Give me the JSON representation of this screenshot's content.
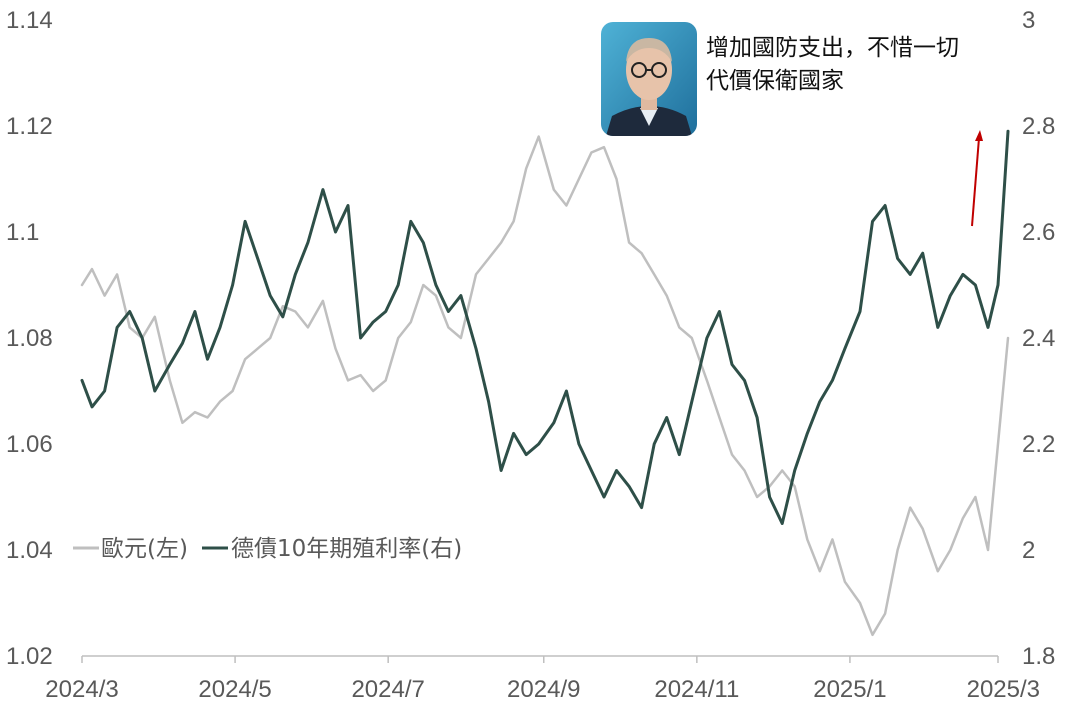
{
  "chart_data": {
    "type": "line",
    "title": "",
    "xlabel": "",
    "ylabel_left": "",
    "ylabel_right": "",
    "x_ticks": [
      "2024/3",
      "2024/5",
      "2024/7",
      "2024/9",
      "2024/11",
      "2025/1",
      "2025/3"
    ],
    "y_left": {
      "range": [
        1.02,
        1.14
      ],
      "ticks": [
        "1.02",
        "1.04",
        "1.06",
        "1.08",
        "1.1",
        "1.12",
        "1.14"
      ]
    },
    "y_right": {
      "range": [
        1.8,
        3.0
      ],
      "ticks": [
        "1.8",
        "2",
        "2.2",
        "2.4",
        "2.6",
        "2.8",
        "3"
      ]
    },
    "grid": false,
    "legend": {
      "placement": "bottom-left",
      "entries": [
        "歐元(左)",
        "德債10年期殖利率(右)"
      ]
    },
    "series": [
      {
        "name": "歐元(左)",
        "axis": "left",
        "color": "#bfbfbf",
        "x": [
          "2024-03-01",
          "2024-03-05",
          "2024-03-10",
          "2024-03-15",
          "2024-03-20",
          "2024-03-25",
          "2024-03-30",
          "2024-04-05",
          "2024-04-10",
          "2024-04-15",
          "2024-04-20",
          "2024-04-25",
          "2024-04-30",
          "2024-05-05",
          "2024-05-10",
          "2024-05-15",
          "2024-05-20",
          "2024-05-25",
          "2024-05-30",
          "2024-06-05",
          "2024-06-10",
          "2024-06-15",
          "2024-06-20",
          "2024-06-25",
          "2024-06-30",
          "2024-07-05",
          "2024-07-10",
          "2024-07-15",
          "2024-07-20",
          "2024-07-25",
          "2024-07-30",
          "2024-08-05",
          "2024-08-10",
          "2024-08-15",
          "2024-08-20",
          "2024-08-25",
          "2024-08-30",
          "2024-09-05",
          "2024-09-10",
          "2024-09-15",
          "2024-09-20",
          "2024-09-25",
          "2024-09-30",
          "2024-10-05",
          "2024-10-10",
          "2024-10-15",
          "2024-10-20",
          "2024-10-25",
          "2024-10-30",
          "2024-11-05",
          "2024-11-10",
          "2024-11-15",
          "2024-11-20",
          "2024-11-25",
          "2024-11-30",
          "2024-12-05",
          "2024-12-10",
          "2024-12-15",
          "2024-12-20",
          "2024-12-25",
          "2024-12-30",
          "2025-01-05",
          "2025-01-10",
          "2025-01-15",
          "2025-01-20",
          "2025-01-25",
          "2025-01-30",
          "2025-02-05",
          "2025-02-10",
          "2025-02-15",
          "2025-02-20",
          "2025-02-25",
          "2025-03-01",
          "2025-03-05"
        ],
        "values": [
          1.09,
          1.093,
          1.088,
          1.092,
          1.082,
          1.08,
          1.084,
          1.072,
          1.064,
          1.066,
          1.065,
          1.068,
          1.07,
          1.076,
          1.078,
          1.08,
          1.086,
          1.085,
          1.082,
          1.087,
          1.078,
          1.072,
          1.073,
          1.07,
          1.072,
          1.08,
          1.083,
          1.09,
          1.088,
          1.082,
          1.08,
          1.092,
          1.095,
          1.098,
          1.102,
          1.112,
          1.118,
          1.108,
          1.105,
          1.11,
          1.115,
          1.116,
          1.11,
          1.098,
          1.096,
          1.092,
          1.088,
          1.082,
          1.08,
          1.072,
          1.065,
          1.058,
          1.055,
          1.05,
          1.052,
          1.055,
          1.052,
          1.042,
          1.036,
          1.042,
          1.034,
          1.03,
          1.024,
          1.028,
          1.04,
          1.048,
          1.044,
          1.036,
          1.04,
          1.046,
          1.05,
          1.04,
          1.06,
          1.08
        ]
      },
      {
        "name": "德債10年期殖利率(右)",
        "axis": "right",
        "color": "#2e4f48",
        "x": [
          "2024-03-01",
          "2024-03-05",
          "2024-03-10",
          "2024-03-15",
          "2024-03-20",
          "2024-03-25",
          "2024-03-30",
          "2024-04-05",
          "2024-04-10",
          "2024-04-15",
          "2024-04-20",
          "2024-04-25",
          "2024-04-30",
          "2024-05-05",
          "2024-05-10",
          "2024-05-15",
          "2024-05-20",
          "2024-05-25",
          "2024-05-30",
          "2024-06-05",
          "2024-06-10",
          "2024-06-15",
          "2024-06-20",
          "2024-06-25",
          "2024-06-30",
          "2024-07-05",
          "2024-07-10",
          "2024-07-15",
          "2024-07-20",
          "2024-07-25",
          "2024-07-30",
          "2024-08-05",
          "2024-08-10",
          "2024-08-15",
          "2024-08-20",
          "2024-08-25",
          "2024-08-30",
          "2024-09-05",
          "2024-09-10",
          "2024-09-15",
          "2024-09-20",
          "2024-09-25",
          "2024-09-30",
          "2024-10-05",
          "2024-10-10",
          "2024-10-15",
          "2024-10-20",
          "2024-10-25",
          "2024-10-30",
          "2024-11-05",
          "2024-11-10",
          "2024-11-15",
          "2024-11-20",
          "2024-11-25",
          "2024-11-30",
          "2024-12-05",
          "2024-12-10",
          "2024-12-15",
          "2024-12-20",
          "2024-12-25",
          "2024-12-30",
          "2025-01-05",
          "2025-01-10",
          "2025-01-15",
          "2025-01-20",
          "2025-01-25",
          "2025-01-30",
          "2025-02-05",
          "2025-02-10",
          "2025-02-15",
          "2025-02-20",
          "2025-02-25",
          "2025-03-01",
          "2025-03-05"
        ],
        "values": [
          2.32,
          2.27,
          2.3,
          2.42,
          2.45,
          2.4,
          2.3,
          2.35,
          2.39,
          2.45,
          2.36,
          2.42,
          2.5,
          2.62,
          2.55,
          2.48,
          2.44,
          2.52,
          2.58,
          2.68,
          2.6,
          2.65,
          2.4,
          2.43,
          2.45,
          2.5,
          2.62,
          2.58,
          2.5,
          2.45,
          2.48,
          2.38,
          2.28,
          2.15,
          2.22,
          2.18,
          2.2,
          2.24,
          2.3,
          2.2,
          2.15,
          2.1,
          2.15,
          2.12,
          2.08,
          2.2,
          2.25,
          2.18,
          2.28,
          2.4,
          2.45,
          2.35,
          2.32,
          2.25,
          2.1,
          2.05,
          2.15,
          2.22,
          2.28,
          2.32,
          2.38,
          2.45,
          2.62,
          2.65,
          2.55,
          2.52,
          2.56,
          2.42,
          2.48,
          2.52,
          2.5,
          2.42,
          2.5,
          2.79
        ]
      }
    ],
    "annotation": {
      "text_lines": [
        "增加國防支出，不惜一切",
        "代價保衛國家"
      ],
      "arrow_color": "#c00000",
      "portrait": "politician-photo"
    }
  }
}
